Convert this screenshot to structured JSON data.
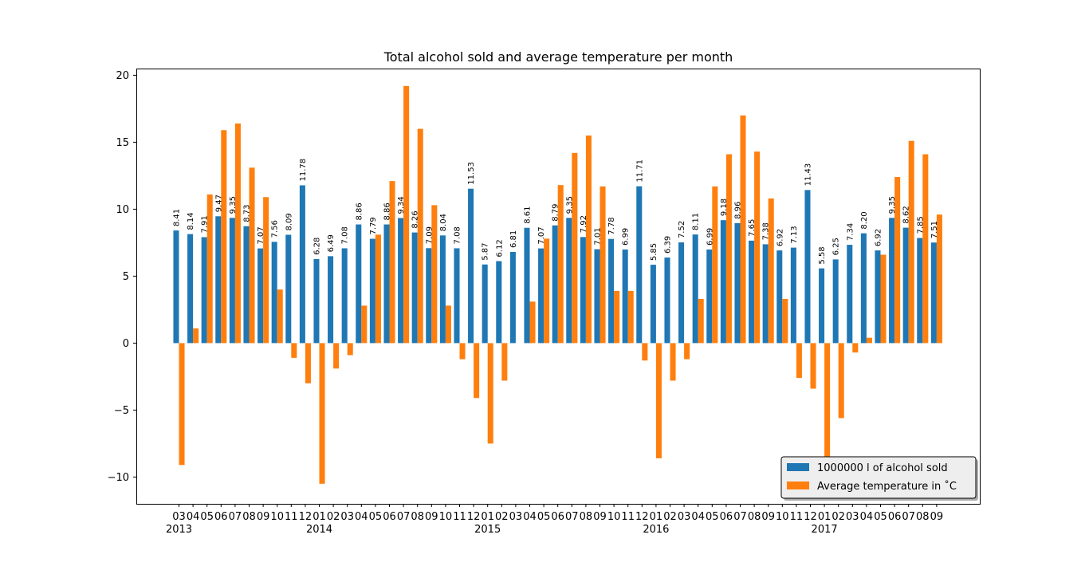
{
  "chart_data": {
    "type": "bar",
    "title": "Total alcohol sold and average temperature per month",
    "xlabel": "",
    "ylabel": "",
    "ylim": [
      -12,
      20.5
    ],
    "yticks": [
      -10,
      -5,
      0,
      5,
      10,
      15,
      20
    ],
    "ytick_labels": [
      "−10",
      "−5",
      "0",
      "5",
      "10",
      "15",
      "20"
    ],
    "grid": false,
    "legend_position": "lower-right",
    "categories": [
      "03",
      "04",
      "05",
      "06",
      "07",
      "08",
      "09",
      "10",
      "11",
      "12",
      "01",
      "02",
      "03",
      "04",
      "05",
      "06",
      "07",
      "08",
      "09",
      "10",
      "11",
      "12",
      "01",
      "02",
      "03",
      "04",
      "05",
      "06",
      "07",
      "08",
      "09",
      "10",
      "11",
      "12",
      "01",
      "02",
      "03",
      "04",
      "05",
      "06",
      "07",
      "08",
      "09",
      "10",
      "11",
      "12",
      "01",
      "02",
      "03",
      "04",
      "05",
      "06",
      "07",
      "08",
      "09"
    ],
    "year_labels": [
      {
        "label": "2013",
        "index": 0
      },
      {
        "label": "2014",
        "index": 10
      },
      {
        "label": "2015",
        "index": 22
      },
      {
        "label": "2016",
        "index": 34
      },
      {
        "label": "2017",
        "index": 46
      }
    ],
    "series": [
      {
        "name": "1000000 l of alcohol sold",
        "color": "#1f77b4",
        "values": [
          8.41,
          8.14,
          7.91,
          9.47,
          9.35,
          8.73,
          7.07,
          7.56,
          8.09,
          11.78,
          6.28,
          6.49,
          7.08,
          8.86,
          7.79,
          8.86,
          9.34,
          8.26,
          7.09,
          8.04,
          7.08,
          11.53,
          5.87,
          6.12,
          6.81,
          8.61,
          7.07,
          8.79,
          9.35,
          7.92,
          7.01,
          7.78,
          6.99,
          11.71,
          5.85,
          6.39,
          7.52,
          8.11,
          6.99,
          9.18,
          8.96,
          7.65,
          7.38,
          6.92,
          7.13,
          11.43,
          5.58,
          6.25,
          7.34,
          8.2,
          6.92,
          9.35,
          8.62,
          7.85,
          7.51
        ],
        "data_labels": [
          "8.41",
          "8.14",
          "7.91",
          "9.47",
          "9.35",
          "8.73",
          "7.07",
          "7.56",
          "8.09",
          "11.78",
          "6.28",
          "6.49",
          "7.08",
          "8.86",
          "7.79",
          "8.86",
          "9.34",
          "8.26",
          "7.09",
          "8.04",
          "7.08",
          "11.53",
          "5.87",
          "6.12",
          "6.81",
          "8.61",
          "7.07",
          "8.79",
          "9.35",
          "7.92",
          "7.01",
          "7.78",
          "6.99",
          "11.71",
          "5.85",
          "6.39",
          "7.52",
          "8.11",
          "6.99",
          "9.18",
          "8.96",
          "7.65",
          "7.38",
          "6.92",
          "7.13",
          "11.43",
          "5.58",
          "6.25",
          "7.34",
          "8.20",
          "6.92",
          "9.35",
          "8.62",
          "7.85",
          "7.51"
        ]
      },
      {
        "name": "Average temperature in $^\\circ$C",
        "legend_label": "Average temperature in  ˚C",
        "color": "#ff7f0e",
        "values": [
          -9.1,
          1.1,
          11.1,
          15.9,
          16.4,
          13.1,
          10.9,
          4.0,
          -1.1,
          -3.0,
          -10.5,
          -1.9,
          -0.9,
          2.8,
          8.1,
          12.1,
          19.2,
          16.0,
          10.3,
          2.8,
          -1.2,
          -4.1,
          -7.5,
          -2.8,
          0.0,
          3.1,
          7.8,
          11.8,
          14.2,
          15.5,
          11.7,
          3.9,
          3.9,
          -1.3,
          -8.6,
          -2.8,
          -1.2,
          3.3,
          11.7,
          14.1,
          17.0,
          14.3,
          10.8,
          3.3,
          -2.6,
          -3.4,
          -8.7,
          -5.6,
          -0.7,
          0.4,
          6.6,
          12.4,
          15.1,
          14.1,
          9.6
        ]
      }
    ]
  }
}
